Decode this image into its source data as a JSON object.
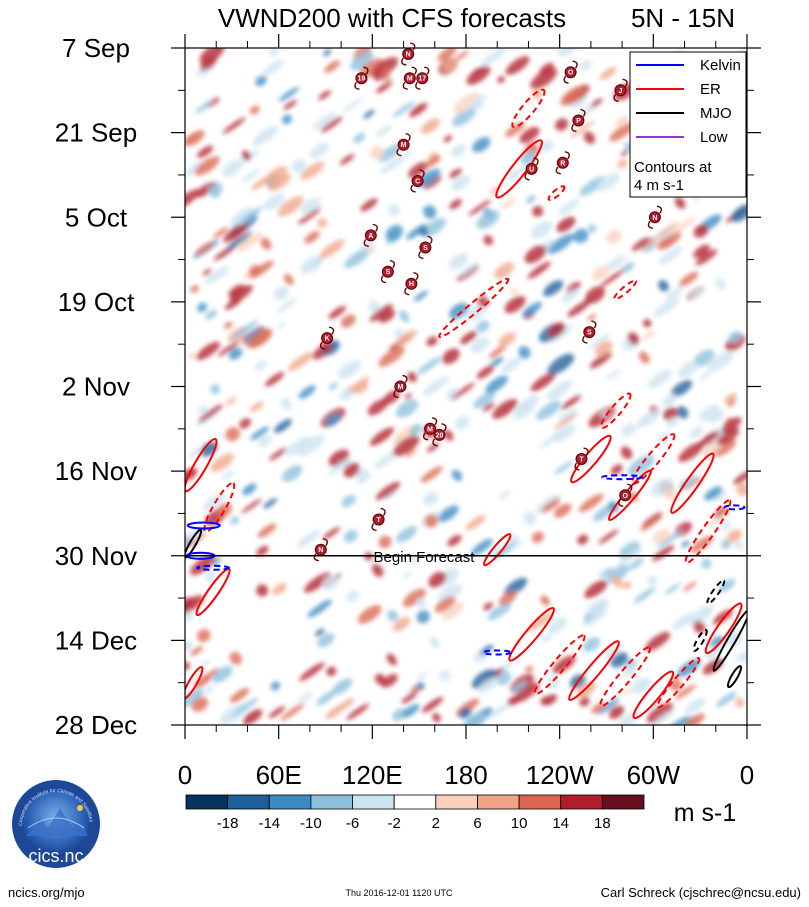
{
  "chart_data": {
    "type": "heatmap",
    "title": "VWND200 with CFS forecasts",
    "region": "5N - 15N",
    "variable": "VWND200",
    "y_axis": {
      "ticks": [
        "7 Sep",
        "21 Sep",
        "5 Oct",
        "19 Oct",
        "2 Nov",
        "16 Nov",
        "30 Nov",
        "14 Dec",
        "28 Dec"
      ],
      "range": [
        "2016-09-07",
        "2016-12-28"
      ]
    },
    "x_axis": {
      "ticks": [
        "0",
        "60E",
        "120E",
        "180",
        "120W",
        "60W",
        "0"
      ],
      "range_deg_east": [
        0,
        360
      ]
    },
    "colorbar": {
      "levels": [
        -18,
        -14,
        -10,
        -6,
        -2,
        2,
        6,
        10,
        14,
        18
      ],
      "labels": [
        "-18",
        "-14",
        "-10",
        "-6",
        "-2",
        "2",
        "6",
        "10",
        "14",
        "18"
      ],
      "colors": [
        "#06345e",
        "#1d5f9a",
        "#3c8bc2",
        "#8bbfdc",
        "#cce3f0",
        "#ffffff",
        "#f9d2bf",
        "#f0a487",
        "#db6650",
        "#b01d2c",
        "#680f1f"
      ],
      "units": "m s-1"
    },
    "legend": {
      "entries": [
        {
          "label": "Kelvin",
          "color": "#0000ff"
        },
        {
          "label": "ER",
          "color": "#ff0000"
        },
        {
          "label": "MJO",
          "color": "#000000"
        },
        {
          "label": "Low",
          "color": "#9932cc"
        }
      ],
      "note_line1": "Contours at",
      "note_line2": "4 m s-1",
      "placement": "top-right"
    },
    "forecast_start": "30 Nov",
    "forecast_label": "Begin Forecast",
    "storms": [
      {
        "label": "N",
        "lon": 143,
        "date": "2016-09-08"
      },
      {
        "label": "19",
        "lon": 113,
        "date": "2016-09-12"
      },
      {
        "label": "M",
        "lon": 144,
        "date": "2016-09-12"
      },
      {
        "label": "17",
        "lon": 152,
        "date": "2016-09-12"
      },
      {
        "label": "O",
        "lon": 247,
        "date": "2016-09-11"
      },
      {
        "label": "J",
        "lon": 279,
        "date": "2016-09-14"
      },
      {
        "label": "P",
        "lon": 252,
        "date": "2016-09-19"
      },
      {
        "label": "M",
        "lon": 140,
        "date": "2016-09-23"
      },
      {
        "label": "U",
        "lon": 222,
        "date": "2016-09-27"
      },
      {
        "label": "R",
        "lon": 242,
        "date": "2016-09-26"
      },
      {
        "label": "C",
        "lon": 149,
        "date": "2016-09-29"
      },
      {
        "label": "N",
        "lon": 301,
        "date": "2016-10-05"
      },
      {
        "label": "A",
        "lon": 119,
        "date": "2016-10-08"
      },
      {
        "label": "S",
        "lon": 154,
        "date": "2016-10-10"
      },
      {
        "label": "S",
        "lon": 130,
        "date": "2016-10-14"
      },
      {
        "label": "H",
        "lon": 145,
        "date": "2016-10-16"
      },
      {
        "label": "K",
        "lon": 91,
        "date": "2016-10-25"
      },
      {
        "label": "S",
        "lon": 259,
        "date": "2016-10-24"
      },
      {
        "label": "M",
        "lon": 138,
        "date": "2016-11-02"
      },
      {
        "label": "M",
        "lon": 157,
        "date": "2016-11-09"
      },
      {
        "label": "20",
        "lon": 163,
        "date": "2016-11-10"
      },
      {
        "label": "T",
        "lon": 254,
        "date": "2016-11-14"
      },
      {
        "label": "O",
        "lon": 282,
        "date": "2016-11-20"
      },
      {
        "label": "T",
        "lon": 124,
        "date": "2016-11-24"
      },
      {
        "label": "N",
        "lon": 87,
        "date": "2016-11-29"
      }
    ]
  },
  "footer": {
    "left": "ncics.org/mjo",
    "center": "Thu 2016-12-01 1120 UTC",
    "right": "Carl Schreck (cjschrec@ncsu.edu)",
    "logo_text": "cics.nc",
    "logo_ring_text": "Cooperative Institute for Climate and Satellites"
  }
}
